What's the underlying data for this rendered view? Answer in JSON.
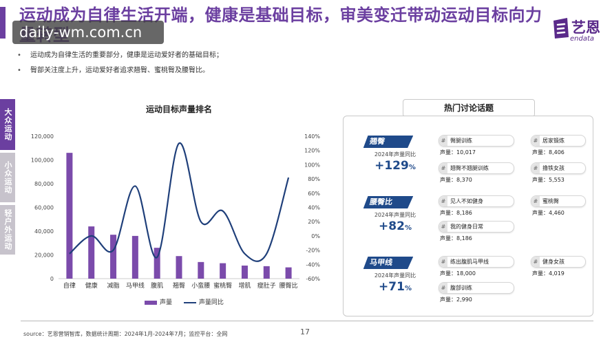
{
  "header": {
    "title": "运动成为自律生活开端，健康是基础目标，审美变迁带动运动目标向力量转型",
    "watermark": "daily-wm.com.cn"
  },
  "logo": {
    "cn": "艺恩",
    "en": "endata"
  },
  "bullets": [
    "运动成为自律生活的重要部分，健康是运动爱好者的基础目标；",
    "臀部关注度上升，运动爱好者追求翘臀、蜜桃臀及腰臀比。"
  ],
  "side_tabs": [
    {
      "label": "大众运动",
      "active": true
    },
    {
      "label": "小众运动",
      "active": false
    },
    {
      "label": "轻户外运动",
      "active": false
    }
  ],
  "chart_data": {
    "type": "bar",
    "title": "运动目标声量排名",
    "categories": [
      "自律",
      "健康",
      "减脂",
      "马甲线",
      "腹肌",
      "翘臀",
      "小蛮腰",
      "蜜桃臀",
      "增肌",
      "瘦肚子",
      "腰臀比"
    ],
    "series": [
      {
        "name": "声量",
        "type": "bar",
        "axis": "left",
        "color": "#7b4bab",
        "values": [
          106000,
          44000,
          37000,
          36000,
          26000,
          19000,
          14000,
          13000,
          11000,
          10500,
          9500
        ]
      },
      {
        "name": "声量同比",
        "type": "line",
        "axis": "right",
        "color": "#1f3f7a",
        "values": [
          -25,
          0,
          -20,
          70,
          -30,
          130,
          20,
          35,
          -25,
          -25,
          82
        ]
      }
    ],
    "y_left": {
      "min": 0,
      "max": 120000,
      "ticks": [
        "0",
        "20,000",
        "40,000",
        "60,000",
        "80,000",
        "100,000",
        "120,000"
      ]
    },
    "y_right": {
      "min": -60,
      "max": 140,
      "ticks": [
        "-60%",
        "-40%",
        "-20%",
        "0%",
        "20%",
        "40%",
        "60%",
        "80%",
        "100%",
        "120%",
        "140%"
      ]
    },
    "legend": [
      "声量",
      "声量同比"
    ],
    "legend_position": "bottom",
    "grid": false
  },
  "panel": {
    "title": "热门讨论话题",
    "groups": [
      {
        "tag": "翘臀",
        "sub": "2024年声量同比",
        "value": "+129",
        "unit": "%",
        "topics": [
          {
            "name": "臀腿训练",
            "volume": "声量：10,017"
          },
          {
            "name": "居家锻炼",
            "volume": "声量：8,406"
          },
          {
            "name": "翘臀不翘腿训练",
            "volume": "声量：8,370"
          },
          {
            "name": "撸铁女孩",
            "volume": "声量：5,553"
          }
        ]
      },
      {
        "tag": "腰臀比",
        "sub": "2024年声量同比",
        "value": "+82",
        "unit": "%",
        "topics": [
          {
            "name": "见人不如健身",
            "volume": "声量：8,186"
          },
          {
            "name": "蜜桃臀",
            "volume": "声量：4,460"
          },
          {
            "name": "我的健身日常",
            "volume": "声量：8,186"
          }
        ]
      },
      {
        "tag": "马甲线",
        "sub": "2024年声量同比",
        "value": "+71",
        "unit": "%",
        "topics": [
          {
            "name": "练出腹肌马甲线",
            "volume": "声量：18,000"
          },
          {
            "name": "健身女孩",
            "volume": "声量：4,019"
          },
          {
            "name": "腹部训练",
            "volume": "声量：2,990"
          }
        ]
      }
    ]
  },
  "footer": {
    "source": "source：艺恩营销智库，数据统计周期：2024年1月-2024年7月；监控平台：全网",
    "page": "17"
  },
  "colors": {
    "brand": "#6b3fa0",
    "bar": "#7b4bab",
    "line": "#1f3f7a",
    "tag": "#1f4a8a"
  }
}
